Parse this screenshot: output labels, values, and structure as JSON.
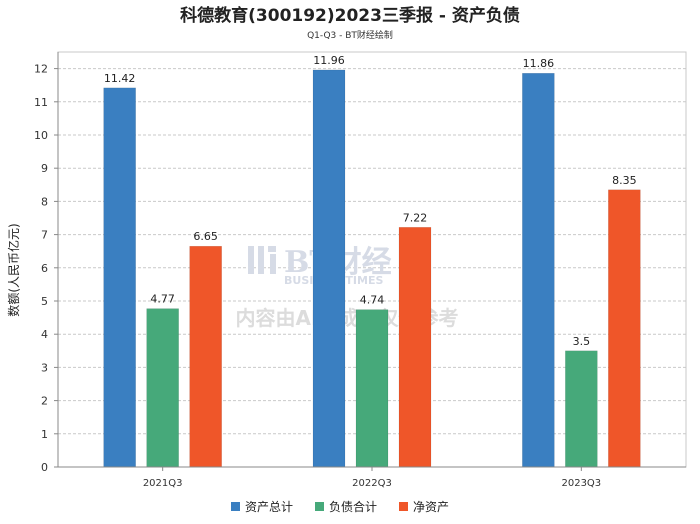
{
  "chart_data": {
    "type": "bar",
    "title": "科德教育(300192)2023三季报 - 资产负债",
    "subtitle": "Q1-Q3 - BT财经绘制",
    "ylabel": "数额(人民币亿元)",
    "categories": [
      "2021Q3",
      "2022Q3",
      "2023Q3"
    ],
    "ylim": [
      0,
      12.5
    ],
    "yticks": [
      0,
      1,
      2,
      3,
      4,
      5,
      6,
      7,
      8,
      9,
      10,
      11,
      12
    ],
    "grid": true,
    "legend_position": "bottom",
    "series": [
      {
        "name": "资产总计",
        "color": "#3a7fc1",
        "values": [
          11.42,
          11.96,
          11.86
        ],
        "labels": [
          "11.42",
          "11.96",
          "11.86"
        ]
      },
      {
        "name": "负债合计",
        "color": "#46a97a",
        "values": [
          4.77,
          4.74,
          3.5
        ],
        "labels": [
          "4.77",
          "4.74",
          "3.5"
        ]
      },
      {
        "name": "净资产",
        "color": "#ef5629",
        "values": [
          6.65,
          7.22,
          8.35
        ],
        "labels": [
          "6.65",
          "7.22",
          "8.35"
        ]
      }
    ]
  },
  "watermark": {
    "brand": "BT财经",
    "brand_en": "BUSINESSTIMES",
    "note": "内容由AI生成，仅供参考"
  }
}
